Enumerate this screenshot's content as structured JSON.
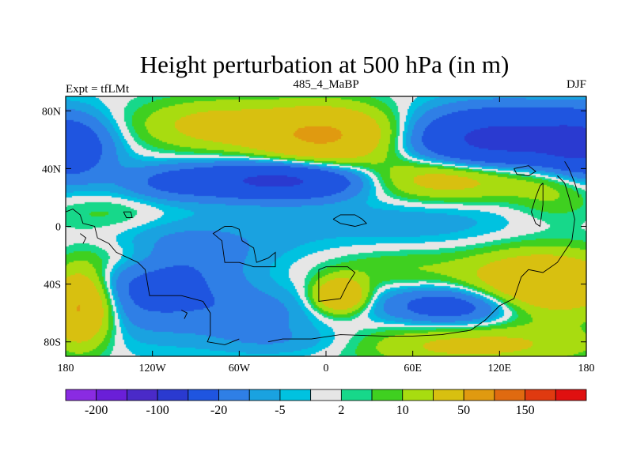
{
  "chart_data": {
    "type": "heatmap",
    "title": "Height perturbation at 500 hPa (in m)",
    "left_string": "Expt = tfLMt",
    "center_string": "485_4_MaBP",
    "right_string": "DJF",
    "x_range": [
      -180,
      180
    ],
    "y_range": [
      -90,
      90
    ],
    "x_ticks": [
      {
        "value": -180,
        "label": "180"
      },
      {
        "value": -120,
        "label": "120W"
      },
      {
        "value": -60,
        "label": "60W"
      },
      {
        "value": 0,
        "label": "0"
      },
      {
        "value": 60,
        "label": "60E"
      },
      {
        "value": 120,
        "label": "120E"
      },
      {
        "value": 180,
        "label": "180"
      }
    ],
    "y_ticks": [
      {
        "value": 80,
        "label": "80N"
      },
      {
        "value": 40,
        "label": "40N"
      },
      {
        "value": 0,
        "label": "0"
      },
      {
        "value": -40,
        "label": "40S"
      },
      {
        "value": -80,
        "label": "80S"
      }
    ],
    "levels": [
      -200,
      -150,
      -100,
      -50,
      -20,
      -10,
      -5,
      -2,
      2,
      5,
      10,
      20,
      50,
      100,
      150,
      200
    ],
    "colors": [
      "#8a2be2",
      "#6a1fd8",
      "#4a2ac8",
      "#2a3ad0",
      "#1f55e0",
      "#2f7fe6",
      "#1aa2e0",
      "#00c2e0",
      "#e6e6e6",
      "#17d88a",
      "#3fd020",
      "#a8dc10",
      "#d8c010",
      "#e09a10",
      "#e06a10",
      "#e03a10",
      "#e01010"
    ],
    "colorbar_labels": [
      {
        "index": 1,
        "label": "-200"
      },
      {
        "index": 3,
        "label": "-100"
      },
      {
        "index": 5,
        "label": "-20"
      },
      {
        "index": 7,
        "label": "-5"
      },
      {
        "index": 9,
        "label": "2"
      },
      {
        "index": 11,
        "label": "10"
      },
      {
        "index": 13,
        "label": "50"
      },
      {
        "index": 15,
        "label": "150"
      }
    ],
    "features": [
      {
        "lon": -180,
        "lat": 55,
        "amp": -40,
        "slon": 22,
        "slat": 16
      },
      {
        "lon": 180,
        "lat": 55,
        "amp": -40,
        "slon": 22,
        "slat": 16
      },
      {
        "lon": -80,
        "lat": 70,
        "amp": 25,
        "slon": 35,
        "slat": 12
      },
      {
        "lon": 0,
        "lat": 63,
        "amp": 55,
        "slon": 35,
        "slat": 14
      },
      {
        "lon": 120,
        "lat": 60,
        "amp": -60,
        "slon": 45,
        "slat": 15
      },
      {
        "lon": -30,
        "lat": 32,
        "amp": -60,
        "slon": 45,
        "slat": 9
      },
      {
        "lon": -110,
        "lat": 30,
        "amp": -15,
        "slon": 25,
        "slat": 9
      },
      {
        "lon": 80,
        "lat": 33,
        "amp": 35,
        "slon": 45,
        "slat": 10
      },
      {
        "lon": 160,
        "lat": 25,
        "amp": 12,
        "slon": 22,
        "slat": 14
      },
      {
        "lon": -150,
        "lat": 8,
        "amp": 8,
        "slon": 30,
        "slat": 10
      },
      {
        "lon": 60,
        "lat": 3,
        "amp": -8,
        "slon": 55,
        "slat": 12
      },
      {
        "lon": -70,
        "lat": -10,
        "amp": -7,
        "slon": 50,
        "slat": 14
      },
      {
        "lon": -120,
        "lat": -40,
        "amp": -28,
        "slon": 40,
        "slat": 22
      },
      {
        "lon": -170,
        "lat": -55,
        "amp": 60,
        "slon": 15,
        "slat": 18
      },
      {
        "lon": -140,
        "lat": -22,
        "amp": 15,
        "slon": 25,
        "slat": 10
      },
      {
        "lon": 10,
        "lat": -48,
        "amp": 50,
        "slon": 12,
        "slat": 8
      },
      {
        "lon": 50,
        "lat": -30,
        "amp": 10,
        "slon": 40,
        "slat": 10
      },
      {
        "lon": 90,
        "lat": -55,
        "amp": -35,
        "slon": 35,
        "slat": 10
      },
      {
        "lon": 150,
        "lat": -40,
        "amp": 50,
        "slon": 35,
        "slat": 15
      },
      {
        "lon": 100,
        "lat": -82,
        "amp": 25,
        "slon": 60,
        "slat": 10
      },
      {
        "lon": -20,
        "lat": -80,
        "amp": -10,
        "slon": 40,
        "slat": 8
      },
      {
        "lon": -50,
        "lat": -60,
        "amp": -12,
        "slon": 30,
        "slat": 12
      }
    ],
    "map_outlines": [
      [
        [
          -180,
          10
        ],
        [
          -175,
          12
        ],
        [
          -170,
          8
        ],
        [
          -168,
          2
        ],
        [
          -160,
          0
        ],
        [
          -158,
          -8
        ],
        [
          -150,
          -12
        ],
        [
          -145,
          -18
        ],
        [
          -130,
          -25
        ],
        [
          -125,
          -30
        ],
        [
          -122,
          -48
        ],
        [
          -100,
          -48
        ],
        [
          -85,
          -52
        ],
        [
          -80,
          -60
        ],
        [
          -80,
          -75
        ],
        [
          -82,
          -80
        ],
        [
          -70,
          -82
        ],
        [
          -60,
          -78
        ]
      ],
      [
        [
          -65,
          0
        ],
        [
          -60,
          -2
        ],
        [
          -58,
          -10
        ],
        [
          -50,
          -15
        ],
        [
          -48,
          -25
        ],
        [
          -40,
          -22
        ],
        [
          -35,
          -18
        ],
        [
          -35,
          -28
        ],
        [
          -50,
          -28
        ],
        [
          -60,
          -25
        ],
        [
          -70,
          -25
        ],
        [
          -72,
          -10
        ],
        [
          -78,
          -5
        ],
        [
          -70,
          0
        ],
        [
          -65,
          0
        ]
      ],
      [
        [
          -5,
          -45
        ],
        [
          -5,
          -30
        ],
        [
          0,
          -28
        ],
        [
          15,
          -28
        ],
        [
          20,
          -32
        ],
        [
          15,
          -40
        ],
        [
          10,
          -50
        ],
        [
          -5,
          -52
        ],
        [
          -5,
          -45
        ]
      ],
      [
        [
          5,
          5
        ],
        [
          10,
          8
        ],
        [
          20,
          8
        ],
        [
          25,
          5
        ],
        [
          28,
          2
        ],
        [
          20,
          0
        ],
        [
          10,
          2
        ],
        [
          5,
          5
        ]
      ],
      [
        [
          -40,
          -80
        ],
        [
          -30,
          -78
        ],
        [
          -10,
          -78
        ],
        [
          10,
          -75
        ],
        [
          40,
          -76
        ],
        [
          60,
          -76
        ],
        [
          80,
          -75
        ],
        [
          100,
          -72
        ],
        [
          110,
          -65
        ],
        [
          120,
          -55
        ],
        [
          130,
          -50
        ],
        [
          135,
          -35
        ],
        [
          140,
          -30
        ],
        [
          150,
          -32
        ],
        [
          160,
          -25
        ],
        [
          170,
          -10
        ],
        [
          172,
          5
        ],
        [
          168,
          20
        ],
        [
          165,
          30
        ],
        [
          160,
          35
        ]
      ],
      [
        [
          150,
          30
        ],
        [
          150,
          15
        ],
        [
          148,
          0
        ],
        [
          145,
          2
        ],
        [
          142,
          10
        ],
        [
          145,
          20
        ],
        [
          148,
          28
        ],
        [
          150,
          30
        ]
      ],
      [
        [
          165,
          45
        ],
        [
          168,
          40
        ],
        [
          172,
          30
        ],
        [
          175,
          20
        ]
      ],
      [
        [
          130,
          40
        ],
        [
          140,
          42
        ],
        [
          145,
          38
        ],
        [
          140,
          35
        ],
        [
          132,
          36
        ],
        [
          130,
          40
        ]
      ],
      [
        [
          -140,
          10
        ],
        [
          -138,
          6
        ],
        [
          -134,
          6
        ],
        [
          -135,
          10
        ],
        [
          -140,
          10
        ]
      ],
      [
        [
          -170,
          -5
        ],
        [
          -166,
          -8
        ],
        [
          -168,
          -12
        ]
      ],
      [
        [
          -100,
          -58
        ],
        [
          -96,
          -60
        ],
        [
          -98,
          -64
        ]
      ]
    ]
  }
}
